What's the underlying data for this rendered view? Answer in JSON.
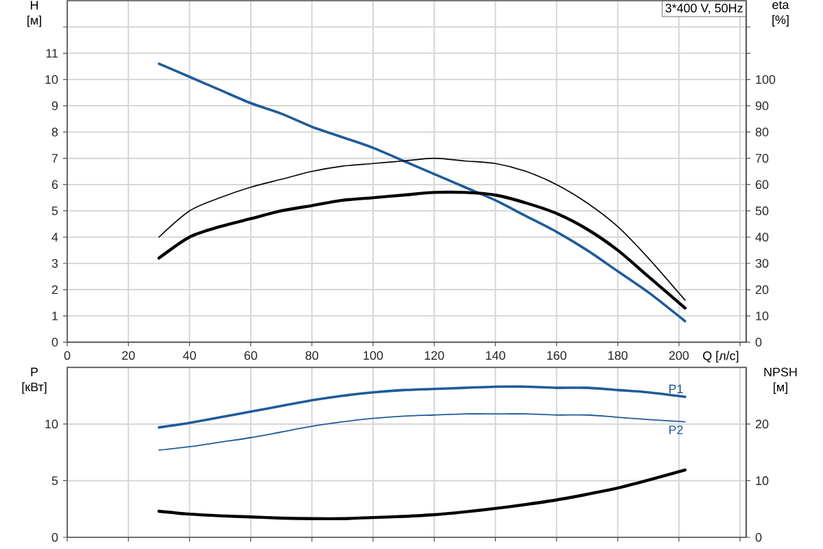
{
  "chart_data": [
    {
      "type": "line",
      "title": "3*400 V, 50Hz",
      "xlabel": "Q [л/с]",
      "ylabel": "H [м]",
      "y2label": "eta [%]",
      "xlim": [
        0,
        222
      ],
      "xticks": [
        0,
        20,
        40,
        60,
        80,
        100,
        120,
        140,
        160,
        180,
        200,
        {
          "value": 220,
          "label": null
        }
      ],
      "ylim": [
        0,
        13
      ],
      "yticks": [
        0,
        1,
        2,
        3,
        4,
        5,
        6,
        7,
        8,
        9,
        10,
        11,
        {
          "value": 12,
          "label": null
        }
      ],
      "y2lim": [
        0,
        130
      ],
      "y2ticks": [
        0,
        10,
        20,
        30,
        40,
        50,
        60,
        70,
        80,
        90,
        100,
        {
          "value": 110,
          "label": null
        },
        {
          "value": 120,
          "label": null
        }
      ],
      "grid": true,
      "x": [
        30,
        40,
        50,
        60,
        70,
        80,
        90,
        100,
        110,
        120,
        130,
        140,
        150,
        160,
        170,
        180,
        190,
        202
      ],
      "series": [
        {
          "color": "#000000",
          "axis": "y2",
          "values": [
            40,
            50,
            55,
            59,
            62,
            65,
            67,
            68,
            69,
            70,
            69,
            68,
            65,
            60,
            53,
            44,
            32,
            16
          ]
        },
        {
          "color": "#000000",
          "axis": "y2",
          "values": [
            32,
            40,
            44,
            47,
            50,
            52,
            54,
            55,
            56,
            57,
            57,
            56,
            53,
            49,
            43,
            35,
            25,
            13
          ]
        },
        {
          "color": "#1f5b99",
          "values": [
            10.6,
            10.1,
            9.6,
            9.1,
            8.7,
            8.2,
            7.8,
            7.4,
            6.9,
            6.4,
            5.9,
            5.4,
            4.8,
            4.2,
            3.5,
            2.7,
            1.9,
            0.8
          ]
        }
      ]
    },
    {
      "type": "line",
      "ylabel": "P [кВт]",
      "y2label": "NPSH [м]",
      "xlim": [
        0,
        222
      ],
      "xticks": [
        0,
        20,
        40,
        60,
        80,
        100,
        120,
        140,
        160,
        180,
        200,
        220
      ],
      "ylim": [
        0,
        15
      ],
      "yticks": [
        0,
        5,
        10
      ],
      "y2lim": [
        0,
        30
      ],
      "y2ticks": [
        0,
        10,
        20
      ],
      "tick_labels": "y",
      "grid": true,
      "x": [
        30,
        40,
        50,
        60,
        70,
        80,
        90,
        100,
        110,
        120,
        130,
        140,
        150,
        160,
        170,
        180,
        190,
        202
      ],
      "series": [
        {
          "name": "P1",
          "color": "#1f5b99",
          "values": [
            9.7,
            10.1,
            10.6,
            11.1,
            11.6,
            12.1,
            12.5,
            12.8,
            13.0,
            13.1,
            13.2,
            13.3,
            13.3,
            13.2,
            13.2,
            13.0,
            12.8,
            12.4
          ]
        },
        {
          "name": "P2",
          "color": "#1f5b99",
          "values": [
            7.7,
            8.0,
            8.4,
            8.8,
            9.3,
            9.8,
            10.2,
            10.5,
            10.7,
            10.8,
            10.9,
            10.9,
            10.9,
            10.8,
            10.8,
            10.6,
            10.4,
            10.2
          ]
        },
        {
          "color": "#000000",
          "axis": "y2",
          "values": [
            4.6,
            4.1,
            3.8,
            3.6,
            3.4,
            3.3,
            3.3,
            3.5,
            3.7,
            4.0,
            4.5,
            5.1,
            5.8,
            6.6,
            7.6,
            8.7,
            10.1,
            11.9
          ]
        }
      ]
    }
  ]
}
